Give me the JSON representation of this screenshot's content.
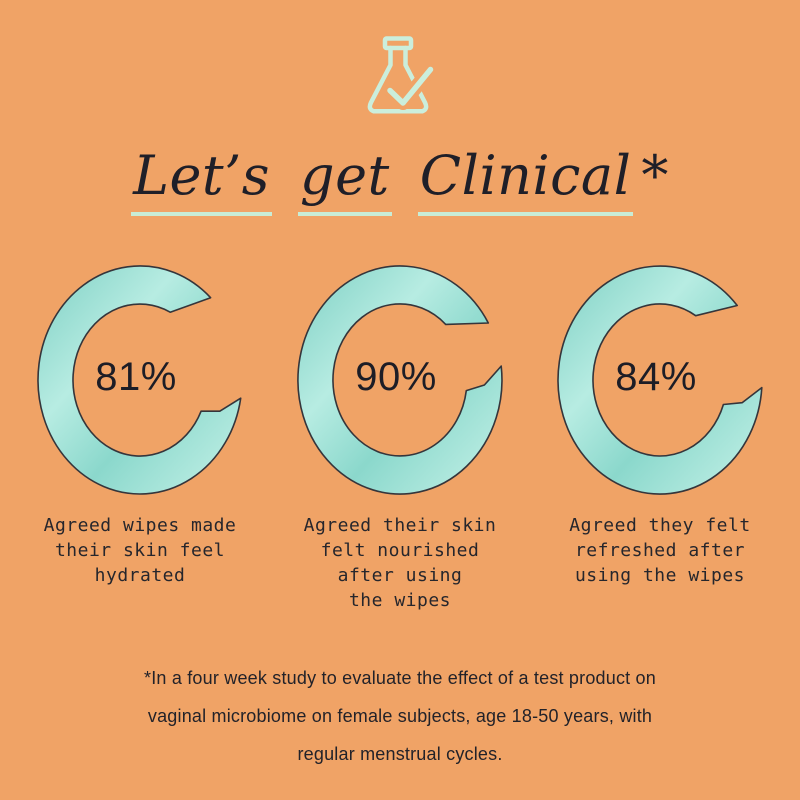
{
  "page": {
    "background": "#F0A366"
  },
  "colors": {
    "teal_dark": "#7ED0C4",
    "teal_light": "#B7ECE2",
    "teal_mid": "#8BD8CC",
    "teal_pale": "#C6F2E8",
    "outline": "#35353B",
    "underline_mint": "#C9EDD6",
    "icon_mint": "#CBEEDC",
    "text_dark": "#1F1F28"
  },
  "header": {
    "icon": "flask-check-icon",
    "title": "Let’s get Clinical*",
    "title_words": [
      "Let’s",
      "get",
      "Clinical"
    ],
    "title_suffix": "*"
  },
  "chart_data": [
    {
      "type": "pie",
      "style": "donut-gauge",
      "value": 81,
      "total": 100,
      "display_value": "81%",
      "caption_lines": [
        "Agreed wipes made",
        "their skin feel",
        "hydrated"
      ]
    },
    {
      "type": "pie",
      "style": "donut-gauge",
      "value": 90,
      "total": 100,
      "display_value": "90%",
      "caption_lines": [
        "Agreed their skin",
        "felt nourished",
        "after using",
        "the wipes"
      ]
    },
    {
      "type": "pie",
      "style": "donut-gauge",
      "value": 84,
      "total": 100,
      "display_value": "84%",
      "caption_lines": [
        "Agreed they felt",
        "refreshed after",
        "using the wipes"
      ]
    }
  ],
  "footnote": {
    "lines": [
      "*In a four week study to evaluate the effect of a test product on",
      "vaginal microbiome on female subjects, age 18-50 years, with",
      "regular menstrual cycles."
    ]
  }
}
